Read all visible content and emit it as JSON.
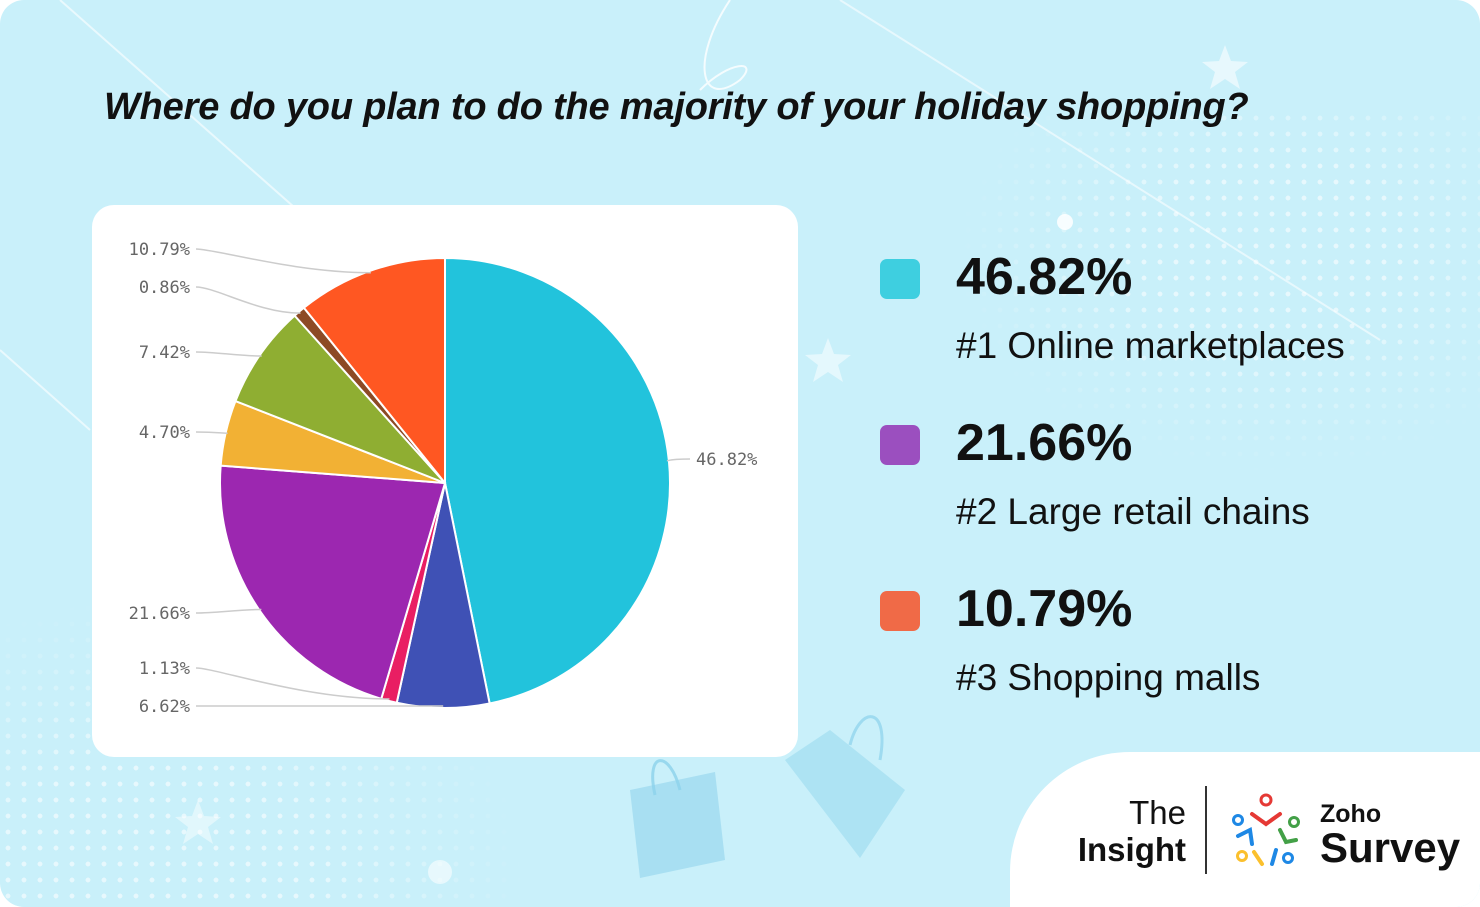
{
  "title": "Where do you plan to do the majority of your holiday shopping?",
  "colors": {
    "background": "#c9f0fa",
    "card": "#ffffff"
  },
  "chart_data": {
    "type": "pie",
    "start_angle_deg": 0,
    "direction": "clockwise",
    "slices": [
      {
        "value": 46.82,
        "label": "46.82%",
        "color": "#22c3dc"
      },
      {
        "value": 6.62,
        "label": "6.62%",
        "color": "#3f51b5"
      },
      {
        "value": 1.13,
        "label": "1.13%",
        "color": "#e91e63"
      },
      {
        "value": 21.66,
        "label": "21.66%",
        "color": "#9c27b0"
      },
      {
        "value": 4.7,
        "label": "4.70%",
        "color": "#f2b134"
      },
      {
        "value": 7.42,
        "label": "7.42%",
        "color": "#8fae32"
      },
      {
        "value": 0.86,
        "label": "0.86%",
        "color": "#8d4a25"
      },
      {
        "value": 10.79,
        "label": "10.79%",
        "color": "#ff5722"
      }
    ]
  },
  "legend": [
    {
      "value": "46.82%",
      "label": "#1 Online marketplaces",
      "color": "#3ecfe0"
    },
    {
      "value": "21.66%",
      "label": "#2 Large retail chains",
      "color": "#9b4fbf"
    },
    {
      "value": "10.79%",
      "label": "#3 Shopping malls",
      "color": "#f06a47"
    }
  ],
  "footer": {
    "insight_top": "The",
    "insight_bottom": "Insight",
    "brand_small": "Zoho",
    "brand_big": "Survey",
    "logo_icon": "zoho-survey-logo-icon"
  }
}
